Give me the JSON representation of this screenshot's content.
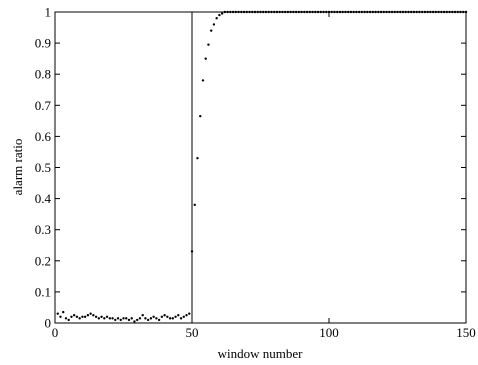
{
  "chart_data": {
    "type": "scatter",
    "title": "",
    "xlabel": "window number",
    "ylabel": "alarm ratio",
    "xlim": [
      0,
      150
    ],
    "ylim": [
      0,
      1
    ],
    "xticks": [
      0,
      50,
      100,
      150
    ],
    "yticks": [
      0,
      0.1,
      0.2,
      0.3,
      0.4,
      0.5,
      0.6,
      0.7,
      0.8,
      0.9,
      1
    ],
    "grid": false,
    "legend": "none",
    "marker_color": "#000000",
    "vertical_line": {
      "x": 50,
      "color": "#000000"
    },
    "series": [
      {
        "x": [
          1,
          2,
          3,
          4,
          5,
          6,
          7,
          8,
          9,
          10,
          11,
          12,
          13,
          14,
          15,
          16,
          17,
          18,
          19,
          20,
          21,
          22,
          23,
          24,
          25,
          26,
          27,
          28,
          29,
          30,
          31,
          32,
          33,
          34,
          35,
          36,
          37,
          38,
          39,
          40,
          41,
          42,
          43,
          44,
          45,
          46,
          47,
          48,
          49,
          50,
          51,
          52,
          53,
          54,
          55,
          56,
          57,
          58,
          59,
          60,
          61,
          62,
          63,
          64,
          65,
          66,
          67,
          68,
          69,
          70,
          71,
          72,
          73,
          74,
          75,
          76,
          77,
          78,
          79,
          80,
          81,
          82,
          83,
          84,
          85,
          86,
          87,
          88,
          89,
          90,
          91,
          92,
          93,
          94,
          95,
          96,
          97,
          98,
          99,
          100,
          101,
          102,
          103,
          104,
          105,
          106,
          107,
          108,
          109,
          110,
          111,
          112,
          113,
          114,
          115,
          116,
          117,
          118,
          119,
          120,
          121,
          122,
          123,
          124,
          125,
          126,
          127,
          128,
          129,
          130,
          131,
          132,
          133,
          134,
          135,
          136,
          137,
          138,
          139,
          140,
          141,
          142,
          143,
          144,
          145,
          146,
          147,
          148,
          149,
          150
        ],
        "y": [
          0.03,
          0.02,
          0.035,
          0.015,
          0.01,
          0.02,
          0.025,
          0.02,
          0.015,
          0.02,
          0.02,
          0.025,
          0.03,
          0.025,
          0.02,
          0.015,
          0.02,
          0.015,
          0.02,
          0.015,
          0.015,
          0.01,
          0.015,
          0.01,
          0.015,
          0.015,
          0.01,
          0.015,
          0.005,
          0.01,
          0.015,
          0.025,
          0.015,
          0.01,
          0.015,
          0.02,
          0.015,
          0.01,
          0.02,
          0.025,
          0.02,
          0.015,
          0.015,
          0.02,
          0.025,
          0.015,
          0.02,
          0.025,
          0.03,
          0.23,
          0.38,
          0.53,
          0.665,
          0.78,
          0.85,
          0.895,
          0.94,
          0.96,
          0.98,
          0.99,
          0.995,
          1,
          1,
          1,
          1,
          1,
          1,
          1,
          1,
          1,
          1,
          1,
          1,
          1,
          1,
          1,
          1,
          1,
          1,
          1,
          1,
          1,
          1,
          1,
          1,
          1,
          1,
          1,
          1,
          1,
          1,
          1,
          1,
          1,
          1,
          1,
          1,
          1,
          1,
          1,
          1,
          1,
          1,
          1,
          1,
          1,
          1,
          1,
          1,
          1,
          1,
          1,
          1,
          1,
          1,
          1,
          1,
          1,
          1,
          1,
          1,
          1,
          1,
          1,
          1,
          1,
          1,
          1,
          1,
          1,
          1,
          1,
          1,
          1,
          1,
          1,
          1,
          1,
          1,
          1,
          1,
          1,
          1,
          1,
          1,
          1,
          1,
          1,
          1,
          1
        ]
      }
    ]
  }
}
